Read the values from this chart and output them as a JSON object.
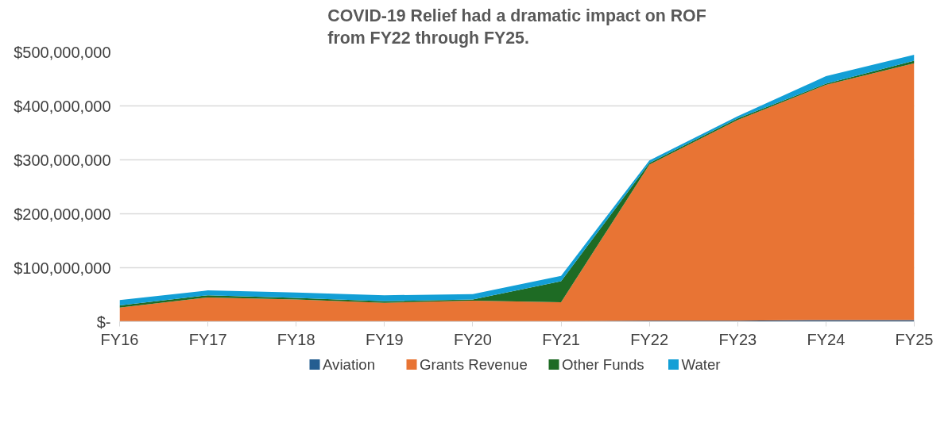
{
  "chart_data": {
    "type": "area",
    "title": "COVID-19 Relief had a dramatic impact on ROF\nfrom FY22 through FY25.",
    "categories": [
      "FY16",
      "FY17",
      "FY18",
      "FY19",
      "FY20",
      "FY21",
      "FY22",
      "FY23",
      "FY24",
      "FY25"
    ],
    "stacked": true,
    "series": [
      {
        "name": "Aviation",
        "color": "#255e91",
        "values": [
          1000000,
          1000000,
          1000000,
          1000000,
          1000000,
          1000000,
          2000000,
          2000000,
          3000000,
          3000000
        ]
      },
      {
        "name": "Grants Revenue",
        "color": "#e87434",
        "values": [
          25000000,
          44000000,
          40000000,
          34000000,
          38000000,
          35000000,
          289000000,
          372000000,
          436000000,
          476000000
        ]
      },
      {
        "name": "Other Funds",
        "color": "#1e6b24",
        "values": [
          4000000,
          4000000,
          3000000,
          3000000,
          2000000,
          39000000,
          3000000,
          3000000,
          2000000,
          5000000
        ]
      },
      {
        "name": "Water",
        "color": "#139fd6",
        "values": [
          10000000,
          9000000,
          10000000,
          11000000,
          10000000,
          10000000,
          5000000,
          4000000,
          14000000,
          11000000
        ]
      }
    ],
    "ylim": [
      0,
      500000000
    ],
    "yticks": [
      {
        "value": 0,
        "label": "$-"
      },
      {
        "value": 100000000,
        "label": "$100,000,000"
      },
      {
        "value": 200000000,
        "label": "$200,000,000"
      },
      {
        "value": 300000000,
        "label": "$300,000,000"
      },
      {
        "value": 400000000,
        "label": "$400,000,000"
      },
      {
        "value": 500000000,
        "label": "$500,000,000"
      }
    ],
    "grid": "y",
    "legend": "bottom"
  }
}
